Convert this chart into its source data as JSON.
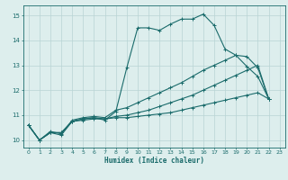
{
  "xlabel": "Humidex (Indice chaleur)",
  "xlim": [
    -0.5,
    23.5
  ],
  "ylim": [
    9.7,
    15.4
  ],
  "xticks": [
    0,
    1,
    2,
    3,
    4,
    5,
    6,
    7,
    8,
    9,
    10,
    11,
    12,
    13,
    14,
    15,
    16,
    17,
    18,
    19,
    20,
    21,
    22,
    23
  ],
  "yticks": [
    10,
    11,
    12,
    13,
    14,
    15
  ],
  "bg_color": "#ddeeed",
  "grid_color": "#b8d4d4",
  "line_color": "#1a6b6b",
  "line1_y": [
    10.6,
    10.0,
    10.3,
    10.2,
    10.75,
    10.85,
    10.9,
    10.8,
    11.15,
    12.9,
    14.5,
    14.5,
    14.4,
    14.65,
    14.85,
    14.85,
    15.05,
    14.6,
    13.65,
    13.4,
    12.95,
    12.55,
    11.65,
    null
  ],
  "line2_y": [
    10.6,
    10.0,
    10.35,
    10.25,
    10.8,
    10.9,
    10.95,
    10.9,
    11.2,
    11.3,
    11.5,
    11.7,
    11.9,
    12.1,
    12.3,
    12.55,
    12.8,
    13.0,
    13.2,
    13.4,
    13.35,
    12.9,
    11.65,
    null
  ],
  "line3_y": [
    10.6,
    10.0,
    10.3,
    10.3,
    10.75,
    10.85,
    10.9,
    10.85,
    10.95,
    11.0,
    11.1,
    11.2,
    11.35,
    11.5,
    11.65,
    11.8,
    12.0,
    12.2,
    12.4,
    12.6,
    12.8,
    13.0,
    11.65,
    null
  ],
  "line4_y": [
    10.6,
    10.0,
    10.3,
    10.3,
    10.75,
    10.8,
    10.85,
    10.85,
    10.9,
    10.9,
    10.95,
    11.0,
    11.05,
    11.1,
    11.2,
    11.3,
    11.4,
    11.5,
    11.6,
    11.7,
    11.8,
    11.9,
    11.65,
    null
  ]
}
